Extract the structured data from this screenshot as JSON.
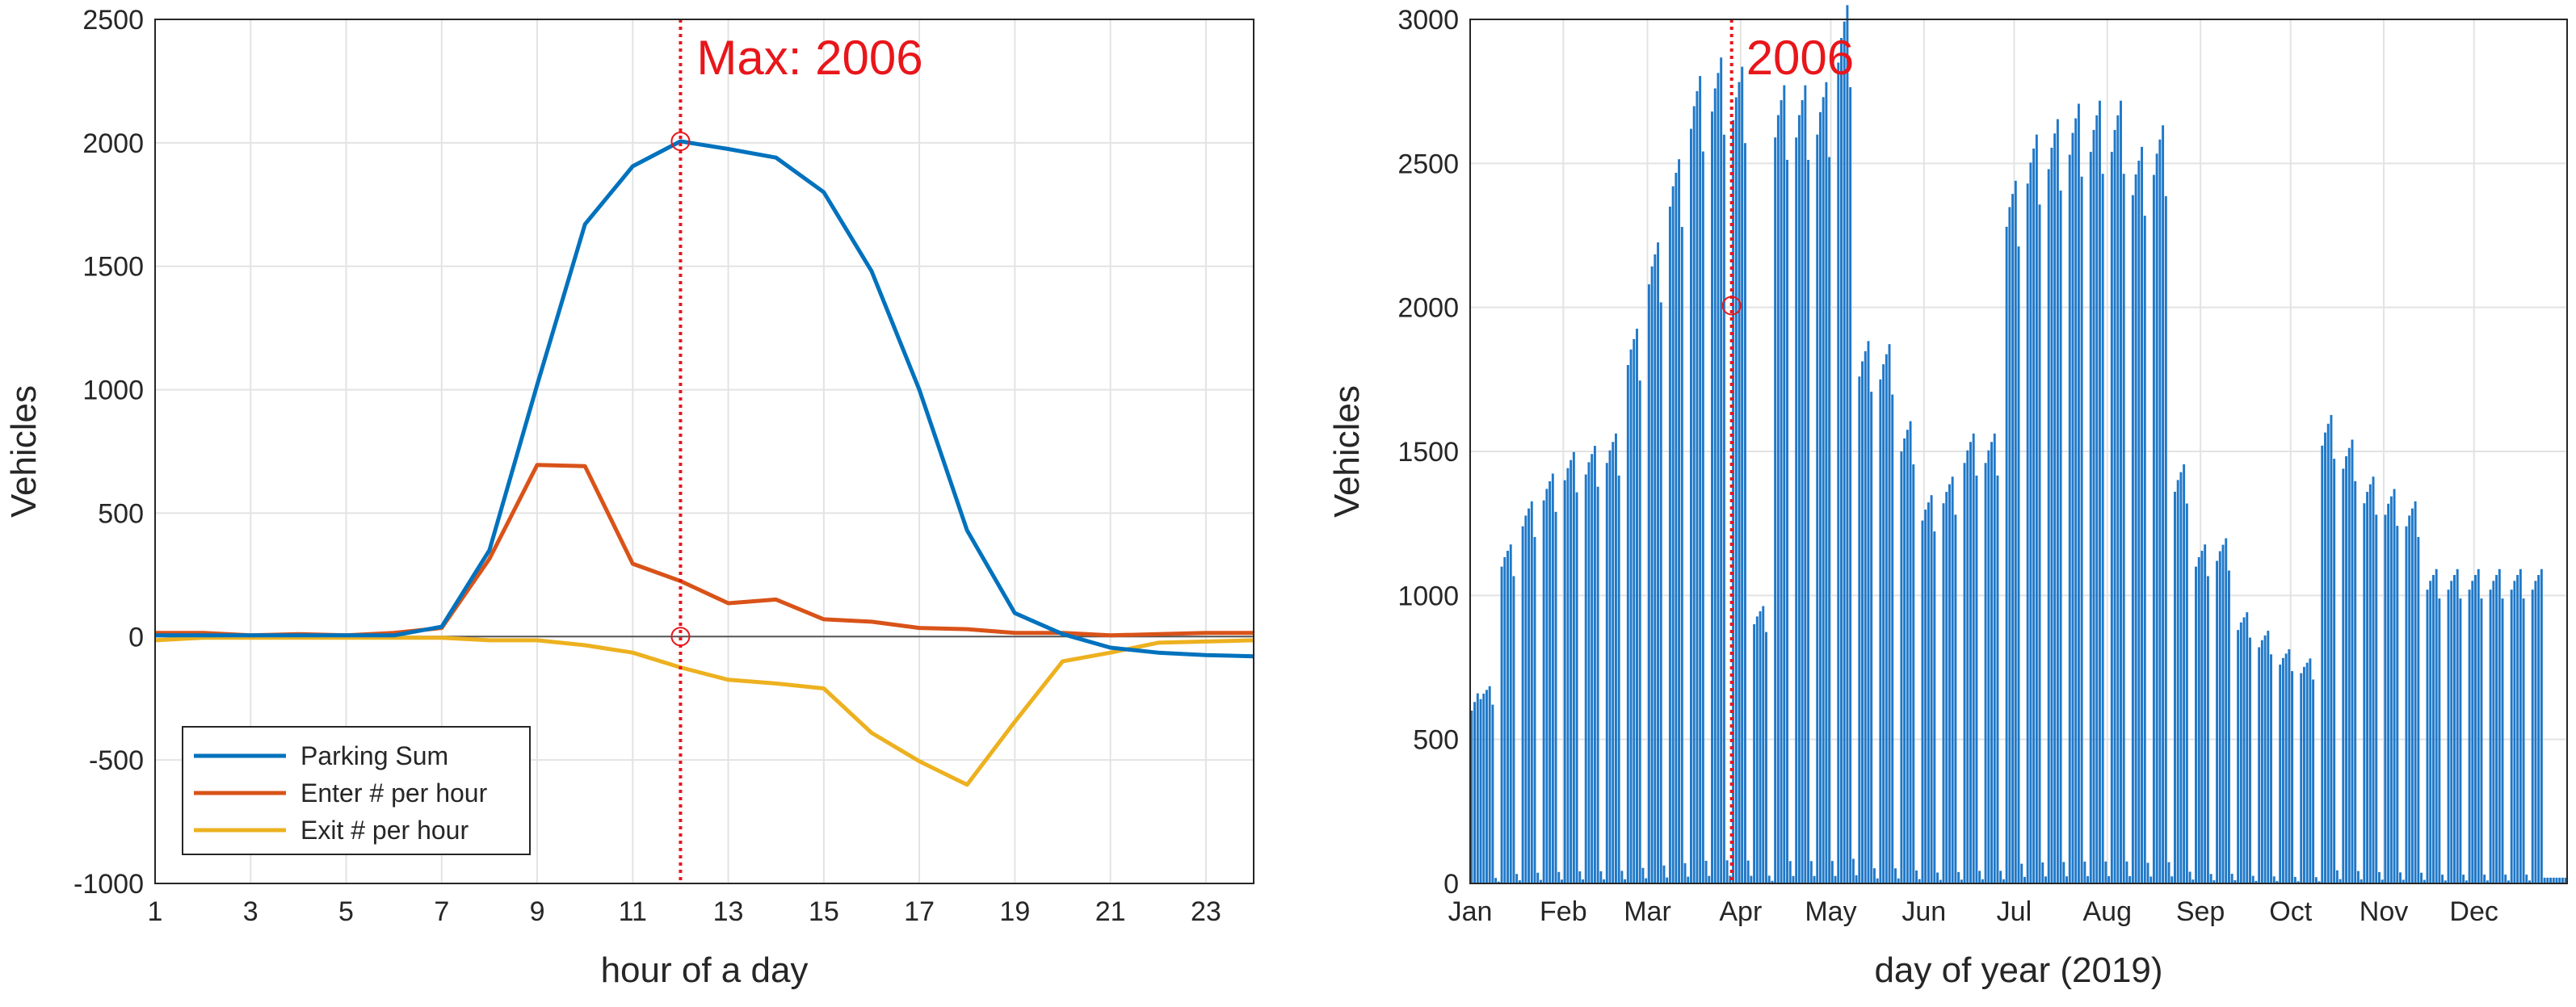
{
  "colors": {
    "parking": "#0072bd",
    "enter": "#d95319",
    "exit": "#edb120",
    "marker": "#e8161b",
    "grid": "#e3e3e3",
    "axis": "#262626",
    "bars": "#1f78c8"
  },
  "chart_data": [
    {
      "type": "line",
      "title": "",
      "annotation": "Max: 2006",
      "annotation_x": 12,
      "annotation_y": 2006,
      "xlabel": "hour of a day",
      "ylabel": "Vehicles",
      "xlim": [
        1,
        24
      ],
      "ylim": [
        -1000,
        2500
      ],
      "xticks": [
        1,
        3,
        5,
        7,
        9,
        11,
        13,
        15,
        17,
        19,
        21,
        23
      ],
      "yticks": [
        -1000,
        -500,
        0,
        500,
        1000,
        1500,
        2000,
        2500
      ],
      "grid": true,
      "legend_position": "bottom-left",
      "x": [
        1,
        2,
        3,
        4,
        5,
        6,
        7,
        8,
        9,
        10,
        11,
        12,
        13,
        14,
        15,
        16,
        17,
        18,
        19,
        20,
        21,
        22,
        23,
        24
      ],
      "series": [
        {
          "name": "Parking Sum",
          "values": [
            5,
            5,
            5,
            5,
            5,
            5,
            40,
            350,
            1020,
            1670,
            1905,
            2006,
            1975,
            1940,
            1800,
            1480,
            1000,
            430,
            95,
            10,
            -45,
            -65,
            -75,
            -80
          ]
        },
        {
          "name": "Enter # per hour",
          "values": [
            15,
            15,
            5,
            10,
            5,
            15,
            35,
            315,
            695,
            690,
            295,
            225,
            135,
            150,
            70,
            60,
            35,
            30,
            15,
            15,
            5,
            10,
            15,
            15
          ]
        },
        {
          "name": "Exit # per hour",
          "values": [
            -15,
            -5,
            -5,
            -5,
            -5,
            -5,
            -5,
            -15,
            -15,
            -35,
            -65,
            -125,
            -175,
            -190,
            -210,
            -390,
            -505,
            -600,
            -345,
            -100,
            -65,
            -25,
            -20,
            -15
          ]
        }
      ]
    },
    {
      "type": "bar",
      "title": "",
      "annotation": "2006",
      "annotation_day": 87,
      "annotation_y": 2006,
      "xlabel": "day of year (2019)",
      "ylabel": "Vehicles",
      "xlim": [
        0,
        365
      ],
      "ylim": [
        0,
        3000
      ],
      "yticks": [
        0,
        500,
        1000,
        1500,
        2000,
        2500,
        3000
      ],
      "month_labels": [
        "Jan",
        "Feb",
        "Mar",
        "Apr",
        "May",
        "Jun",
        "Jul",
        "Aug",
        "Sep",
        "Oct",
        "Nov",
        "Dec"
      ],
      "month_start_days": [
        0,
        31,
        59,
        90,
        120,
        151,
        181,
        212,
        243,
        273,
        304,
        334
      ],
      "grid": true,
      "weekly_peak_pattern": [
        1,
        1.03,
        1.05,
        1.07,
        0.97,
        0.03,
        0.01
      ],
      "weekly_peaks": [
        640,
        1100,
        1240,
        1330,
        1400,
        1420,
        1460,
        1800,
        2080,
        2350,
        2620,
        2680,
        2650,
        900,
        2590,
        2590,
        2600,
        2850,
        1760,
        1750,
        1500,
        1260,
        1320,
        1460,
        1460,
        2280,
        2430,
        2480,
        2530,
        2540,
        2540,
        2390,
        2460,
        1360,
        1100,
        1120,
        880,
        820,
        760,
        730,
        1520,
        1440,
        1320,
        1280,
        1240,
        1020
      ],
      "weekly_first_day": 3
    }
  ],
  "legend": {
    "items": [
      "Parking Sum",
      "Enter # per hour",
      "Exit # per hour"
    ]
  }
}
